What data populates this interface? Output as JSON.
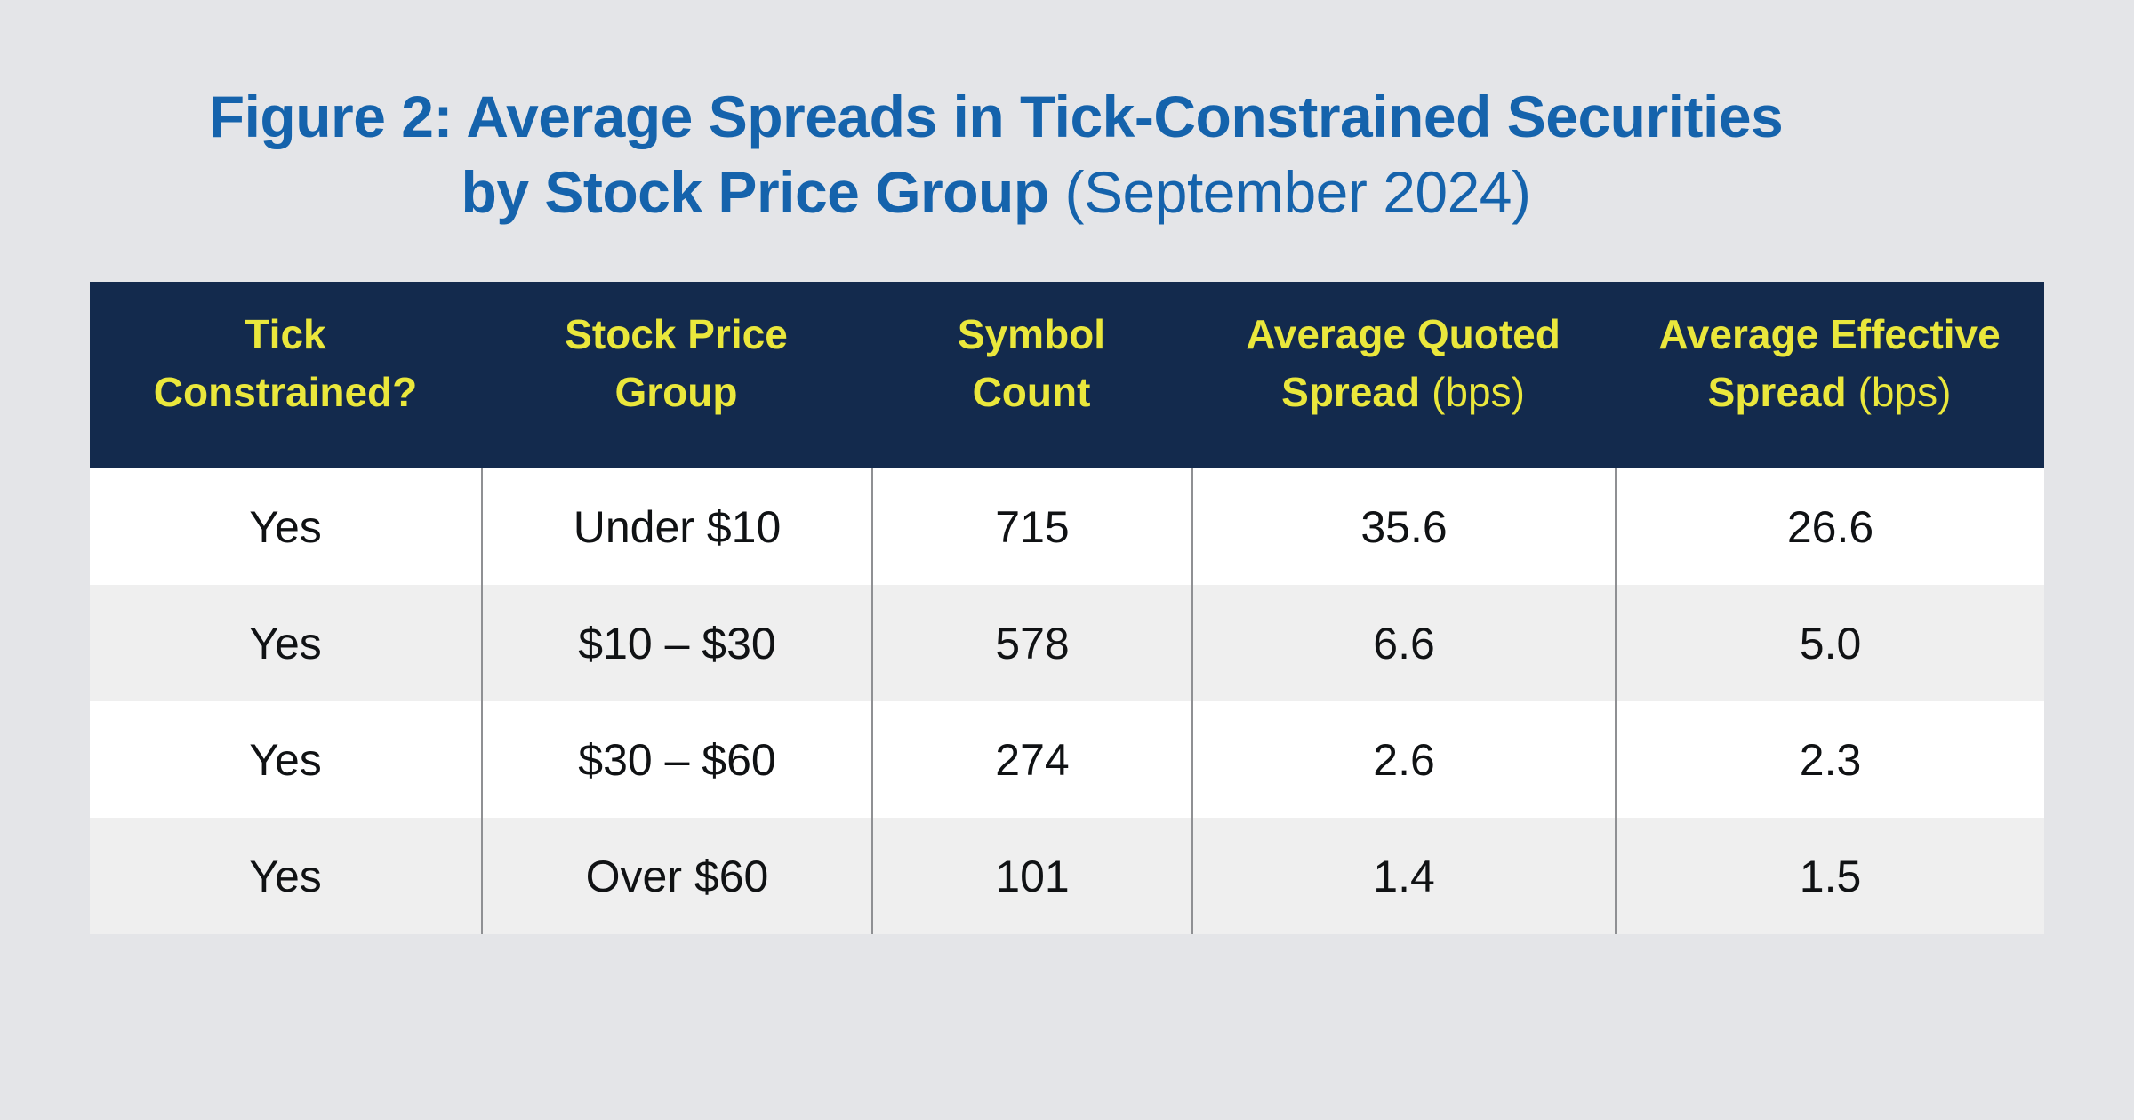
{
  "page": {
    "background": "#E4E5E8"
  },
  "title": {
    "line1": "Figure 2: Average Spreads in Tick-Constrained Securities",
    "line2_bold": "by Stock Price Group",
    "line2_normal": "(September 2024)",
    "color": "#1563AC"
  },
  "table": {
    "header": {
      "background": "#132A4D",
      "text_color": "#EAE73C",
      "columns": [
        {
          "line1": "Tick",
          "line2": "Constrained?"
        },
        {
          "line1": "Stock Price",
          "line2": "Group"
        },
        {
          "line1": "Symbol",
          "line2": "Count"
        },
        {
          "line1": "Average Quoted",
          "line2": "Spread",
          "line2_note": "(bps)"
        },
        {
          "line1": "Average Effective",
          "line2": "Spread",
          "line2_note": "(bps)"
        }
      ]
    },
    "rows": [
      {
        "cells": [
          "Yes",
          "Under $10",
          "715",
          "35.6",
          "26.6"
        ]
      },
      {
        "cells": [
          "Yes",
          "$10 – $30",
          "578",
          "6.6",
          "5.0"
        ]
      },
      {
        "cells": [
          "Yes",
          "$30 – $60",
          "274",
          "2.6",
          "2.3"
        ]
      },
      {
        "cells": [
          "Yes",
          "Over $60",
          "101",
          "1.4",
          "1.5"
        ]
      }
    ],
    "row_colors": {
      "odd": "#FFFFFF",
      "even": "#EFEFEF"
    },
    "divider_color": "#8F9093"
  },
  "chart_data": {
    "type": "table",
    "title": "Figure 2: Average Spreads in Tick-Constrained Securities by Stock Price Group (September 2024)",
    "columns": [
      "Tick Constrained?",
      "Stock Price Group",
      "Symbol Count",
      "Average Quoted Spread (bps)",
      "Average Effective Spread (bps)"
    ],
    "rows": [
      [
        "Yes",
        "Under $10",
        715,
        35.6,
        26.6
      ],
      [
        "Yes",
        "$10 – $30",
        578,
        6.6,
        5.0
      ],
      [
        "Yes",
        "$30 – $60",
        274,
        2.6,
        2.3
      ],
      [
        "Yes",
        "Over $60",
        101,
        1.4,
        1.5
      ]
    ]
  }
}
